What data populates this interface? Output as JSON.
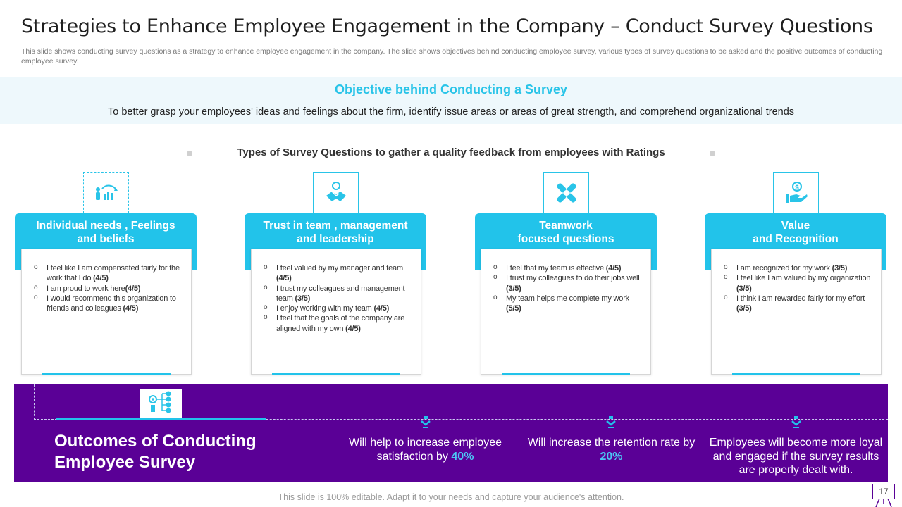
{
  "title": "Strategies to Enhance Employee Engagement in the Company – Conduct Survey Questions",
  "subtitle": "This slide shows conducting survey questions as a strategy to enhance employee engagement in the company. The slide shows objectives behind conducting employee survey, various types of survey questions to be asked and the positive outcomes of conducting employee survey.",
  "objective": {
    "title": "Objective behind Conducting a Survey",
    "text": "To better grasp your employees' ideas and feelings about the firm, identify issue areas or areas of great strength, and comprehend organizational trends"
  },
  "types_heading": "Types of Survey Questions to gather a quality feedback from employees with Ratings",
  "cards": [
    {
      "icon": "growth-chart-person-icon",
      "title_line1": "Individual needs , Feelings",
      "title_line2": "and beliefs",
      "items": [
        {
          "text": "I feel like I am compensated fairly for the work that I do",
          "rating": "(4/5)"
        },
        {
          "text": "I am proud to work here",
          "rating": "(4/5)"
        },
        {
          "text": "I would recommend this organization to friends and colleagues",
          "rating": "(4/5)"
        }
      ]
    },
    {
      "icon": "handshake-icon",
      "title_line1": "Trust in team , management",
      "title_line2": "and leadership",
      "items": [
        {
          "text": "I feel valued by my manager and team",
          "rating": "(4/5)"
        },
        {
          "text": "I trust my colleagues and management team",
          "rating": "(3/5)"
        },
        {
          "text": "I enjoy working with my team",
          "rating": "(4/5)"
        },
        {
          "text": "I feel that the goals of the company are aligned with my own",
          "rating": "(4/5)"
        }
      ]
    },
    {
      "icon": "teamwork-hands-icon",
      "title_line1": "Teamwork",
      "title_line2": "focused questions",
      "items": [
        {
          "text": "I feel that my team is effective",
          "rating": "(4/5)"
        },
        {
          "text": "I trust my colleagues to do their jobs well",
          "rating": "(3/5)"
        },
        {
          "text": "My team helps me complete my work",
          "rating": "(5/5)"
        }
      ]
    },
    {
      "icon": "hand-coin-icon",
      "title_line1": "Value",
      "title_line2": "and Recognition",
      "items": [
        {
          "text": "I am recognized for my work",
          "rating": "(3/5)"
        },
        {
          "text": "I feel like I am valued by my organization",
          "rating": "(3/5)"
        },
        {
          "text": "I think I am rewarded fairly for my effort",
          "rating": "(3/5)"
        }
      ]
    }
  ],
  "outcomes": {
    "title_line1": "Outcomes of Conducting",
    "title_line2": "Employee Survey",
    "icon": "process-flow-icon",
    "items": [
      {
        "pre": "Will help to increase employee satisfaction by ",
        "pct": "40%",
        "post": ""
      },
      {
        "pre": "Will increase the retention rate by ",
        "pct": "20%",
        "post": ""
      },
      {
        "pre": "Employees will become more loyal and engaged if the survey results are properly dealt with.",
        "pct": "",
        "post": ""
      }
    ]
  },
  "footer": "This slide is 100% editable. Adapt it to your needs and capture your audience's attention.",
  "page_number": "17",
  "colors": {
    "accent_cyan": "#22c3ea",
    "panel_purple": "#5a0096",
    "highlight_blue": "#4cc7f5"
  }
}
